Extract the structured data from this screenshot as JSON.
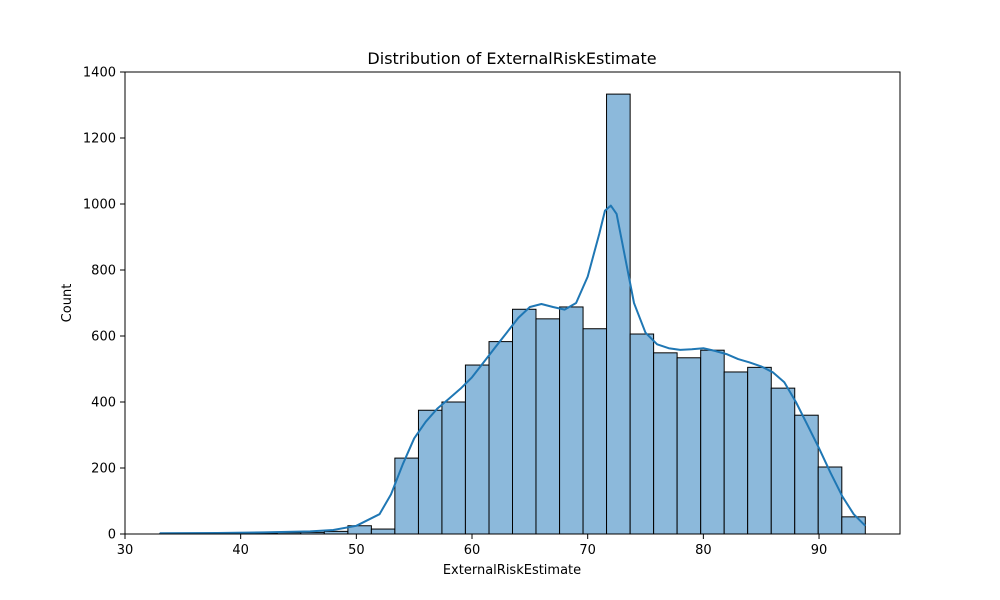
{
  "chart_data": {
    "type": "bar",
    "subtype": "histogram-with-kde",
    "title": "Distribution of ExternalRiskEstimate",
    "xlabel": "ExternalRiskEstimate",
    "ylabel": "Count",
    "xlim": [
      30,
      97
    ],
    "ylim": [
      0,
      1400
    ],
    "xticks": [
      30,
      40,
      50,
      60,
      70,
      80,
      90
    ],
    "yticks": [
      0,
      200,
      400,
      600,
      800,
      1000,
      1200,
      1400
    ],
    "grid": false,
    "bar_color": "#8cb9db",
    "edge_color": "#000000",
    "kde_color": "#1f77b4",
    "bins": [
      {
        "x0": 33.0,
        "x1": 35.03,
        "count": 1
      },
      {
        "x0": 35.03,
        "x1": 37.07,
        "count": 0
      },
      {
        "x0": 37.07,
        "x1": 39.1,
        "count": 0
      },
      {
        "x0": 39.1,
        "x1": 41.13,
        "count": 1
      },
      {
        "x0": 41.13,
        "x1": 43.17,
        "count": 3
      },
      {
        "x0": 43.17,
        "x1": 45.2,
        "count": 4
      },
      {
        "x0": 45.2,
        "x1": 47.23,
        "count": 5
      },
      {
        "x0": 47.23,
        "x1": 49.27,
        "count": 8
      },
      {
        "x0": 49.27,
        "x1": 51.3,
        "count": 25
      },
      {
        "x0": 51.3,
        "x1": 53.33,
        "count": 15
      },
      {
        "x0": 53.33,
        "x1": 55.37,
        "count": 230
      },
      {
        "x0": 55.37,
        "x1": 57.4,
        "count": 375
      },
      {
        "x0": 57.4,
        "x1": 59.43,
        "count": 400
      },
      {
        "x0": 59.43,
        "x1": 61.47,
        "count": 512
      },
      {
        "x0": 61.47,
        "x1": 63.5,
        "count": 583
      },
      {
        "x0": 63.5,
        "x1": 65.53,
        "count": 681
      },
      {
        "x0": 65.53,
        "x1": 67.57,
        "count": 652
      },
      {
        "x0": 67.57,
        "x1": 69.6,
        "count": 688
      },
      {
        "x0": 69.6,
        "x1": 71.63,
        "count": 622
      },
      {
        "x0": 71.63,
        "x1": 73.67,
        "count": 1333
      },
      {
        "x0": 73.67,
        "x1": 75.7,
        "count": 606
      },
      {
        "x0": 75.7,
        "x1": 77.73,
        "count": 549
      },
      {
        "x0": 77.73,
        "x1": 79.77,
        "count": 534
      },
      {
        "x0": 79.77,
        "x1": 81.8,
        "count": 557
      },
      {
        "x0": 81.8,
        "x1": 83.83,
        "count": 491
      },
      {
        "x0": 83.83,
        "x1": 85.87,
        "count": 505
      },
      {
        "x0": 85.87,
        "x1": 87.9,
        "count": 442
      },
      {
        "x0": 87.9,
        "x1": 89.93,
        "count": 360
      },
      {
        "x0": 89.93,
        "x1": 91.97,
        "count": 203
      },
      {
        "x0": 91.97,
        "x1": 94.0,
        "count": 52
      }
    ],
    "kde": {
      "x": [
        33,
        38,
        42,
        46,
        48,
        50,
        52,
        53,
        54,
        55,
        56,
        57,
        58,
        59,
        60,
        61,
        62,
        63,
        64,
        65,
        66,
        67,
        68,
        69,
        70,
        71,
        71.5,
        72,
        72.5,
        73,
        74,
        75,
        76,
        77,
        78,
        79,
        80,
        81,
        82,
        83,
        84,
        85,
        86,
        87,
        88,
        89,
        90,
        91,
        92,
        93,
        94
      ],
      "y": [
        2,
        3,
        5,
        8,
        12,
        25,
        60,
        120,
        210,
        290,
        340,
        380,
        410,
        440,
        475,
        520,
        565,
        610,
        655,
        688,
        697,
        688,
        680,
        700,
        780,
        910,
        980,
        995,
        970,
        880,
        700,
        610,
        575,
        563,
        558,
        560,
        563,
        555,
        545,
        530,
        520,
        508,
        490,
        460,
        400,
        330,
        260,
        185,
        115,
        60,
        25
      ]
    }
  }
}
